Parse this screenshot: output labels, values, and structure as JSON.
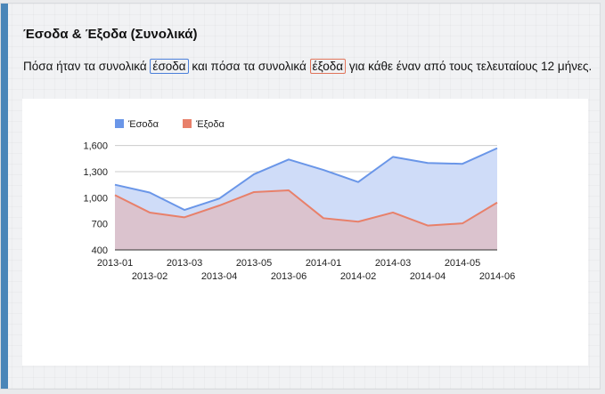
{
  "header": {
    "title": "Έσοδα & Έξοδα (Συνολικά)",
    "desc_before": "Πόσα ήταν τα συνολικά",
    "keyword_income": "έσοδα",
    "desc_middle": "και πόσα τα συνολικά",
    "keyword_expenses": "έξοδα",
    "desc_after": "για κάθε έναν από τους τελευταίους 12 μήνες."
  },
  "colors": {
    "accent": "#4a86b8",
    "income": "#6a96e8",
    "expenses": "#e8806a",
    "income_fill": "#cfdcf8",
    "overlap_fill": "#dbc3ce"
  },
  "chart_data": {
    "type": "area",
    "categories": [
      "2013-01",
      "2013-02",
      "2013-03",
      "2013-04",
      "2013-05",
      "2013-06",
      "2014-01",
      "2014-02",
      "2014-03",
      "2014-04",
      "2014-05",
      "2014-06"
    ],
    "series": [
      {
        "name": "Έσοδα",
        "values": [
          1150,
          1060,
          860,
          990,
          1270,
          1440,
          1320,
          1180,
          1470,
          1400,
          1390,
          1570
        ]
      },
      {
        "name": "Έξοδα",
        "values": [
          1030,
          830,
          775,
          910,
          1065,
          1085,
          765,
          725,
          830,
          680,
          705,
          945
        ]
      }
    ],
    "ylim": [
      400,
      1750
    ],
    "yticks": [
      400,
      700,
      1000,
      1300,
      1600
    ],
    "ytick_labels": [
      "400",
      "700",
      "1,000",
      "1,300",
      "1,600"
    ],
    "grid": true,
    "legend": "top-left",
    "title": "",
    "xlabel": "",
    "ylabel": ""
  }
}
